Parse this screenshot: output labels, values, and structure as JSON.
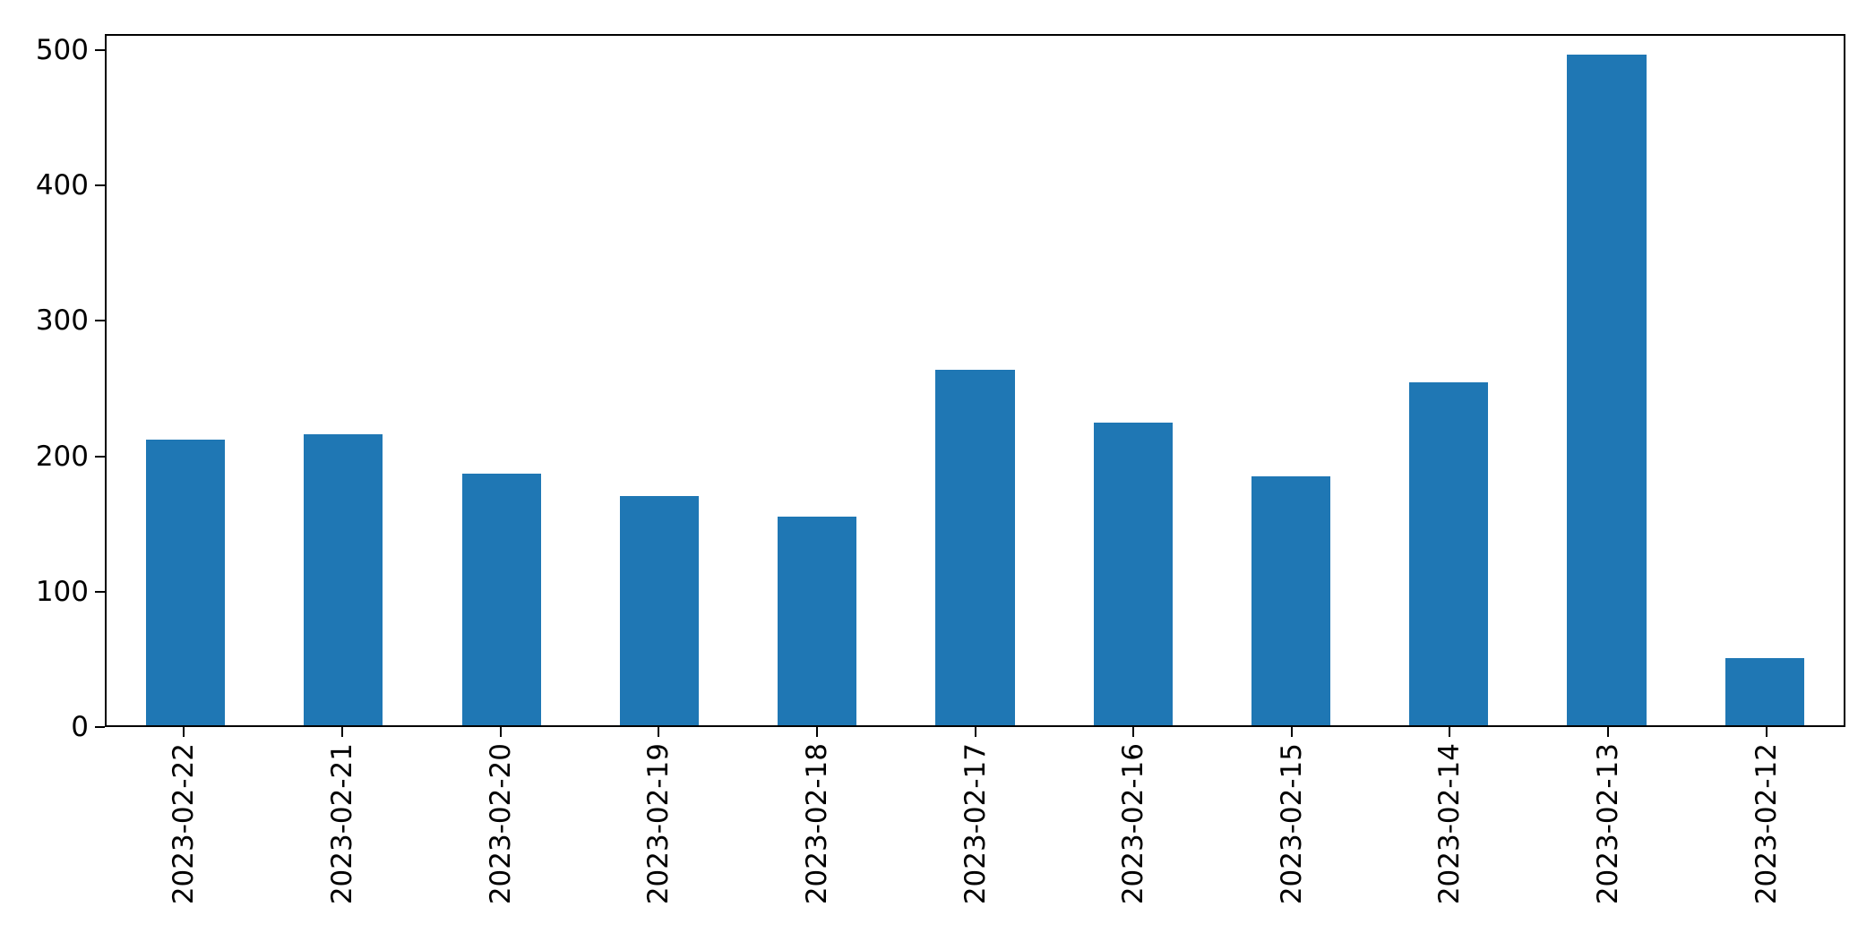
{
  "chart_data": {
    "type": "bar",
    "title": "",
    "xlabel": "",
    "ylabel": "",
    "categories": [
      "2023-02-22",
      "2023-02-21",
      "2023-02-20",
      "2023-02-19",
      "2023-02-18",
      "2023-02-17",
      "2023-02-16",
      "2023-02-15",
      "2023-02-14",
      "2023-02-13",
      "2023-02-12"
    ],
    "values": [
      212,
      216,
      187,
      170,
      155,
      264,
      225,
      185,
      255,
      498,
      50
    ],
    "ylim": [
      0,
      512
    ],
    "yticks": [
      0,
      100,
      200,
      300,
      400,
      500
    ],
    "bar_color": "#1f77b4",
    "grid": false,
    "legend": null,
    "x_tick_rotation_degrees": 90
  }
}
